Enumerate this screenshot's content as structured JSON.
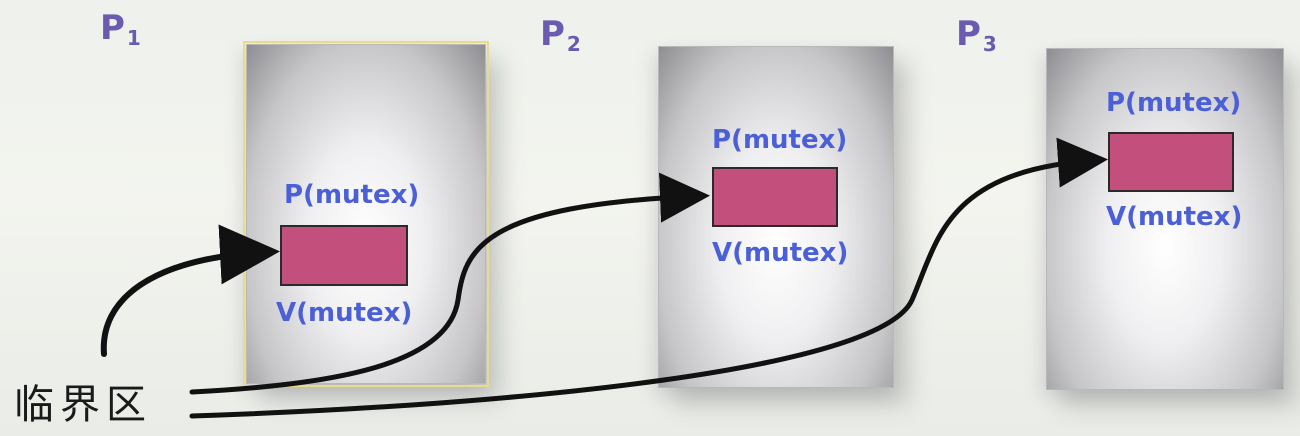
{
  "processes": [
    {
      "name": "P",
      "index": "1",
      "p_op": "P(mutex)",
      "v_op": "V(mutex)"
    },
    {
      "name": "P",
      "index": "2",
      "p_op": "P(mutex)",
      "v_op": "V(mutex)"
    },
    {
      "name": "P",
      "index": "3",
      "p_op": "P(mutex)",
      "v_op": "V(mutex)"
    }
  ],
  "critical_section_label": "临界区",
  "colors": {
    "process_label": "#6a5bb0",
    "operation_text": "#4b5fd6",
    "critical_block": "#c24f7c",
    "arrow": "#111111",
    "background": "#eef1ec"
  }
}
